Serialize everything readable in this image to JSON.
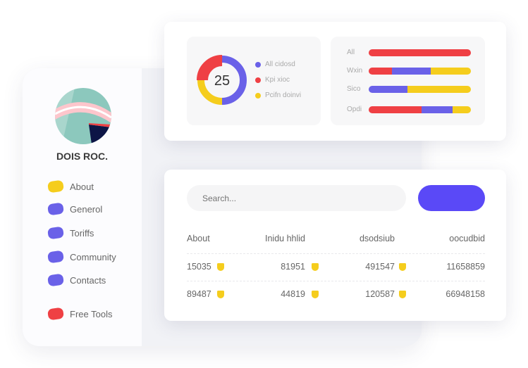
{
  "colors": {
    "red": "#ef4044",
    "blue": "#6a61e8",
    "yellow": "#f5cd1d",
    "accent": "#5a49f7"
  },
  "sidebar": {
    "brand": "DOIS ROC.",
    "items": [
      {
        "label": "About",
        "color": "#f5cd1d"
      },
      {
        "label": "Generol",
        "color": "#6a61e8"
      },
      {
        "label": "Toriffs",
        "color": "#6a61e8"
      },
      {
        "label": "Community",
        "color": "#6a61e8"
      },
      {
        "label": "Contacts",
        "color": "#6a61e8"
      },
      {
        "label": "Free Tools",
        "color": "#ef4044"
      }
    ]
  },
  "donut": {
    "value": "25",
    "segments": [
      {
        "label": "All cidosd",
        "fraction": 0.5,
        "color": "#6a61e8"
      },
      {
        "label": "Kpi xioc",
        "fraction": 0.25,
        "color": "#ef4044"
      },
      {
        "label": "Pcifn doinvi",
        "fraction": 0.25,
        "color": "#f5cd1d"
      }
    ]
  },
  "bars": [
    {
      "label": "All",
      "segments": [
        {
          "fraction": 1,
          "color": "#ef4044"
        }
      ]
    },
    {
      "label": "Wxin",
      "segments": [
        {
          "fraction": 0.23,
          "color": "#ef4044"
        },
        {
          "fraction": 0.38,
          "color": "#6a61e8"
        },
        {
          "fraction": 0.39,
          "color": "#f5cd1d"
        }
      ]
    },
    {
      "label": "Sico",
      "segments": [
        {
          "fraction": 0.38,
          "color": "#6a61e8"
        },
        {
          "fraction": 0.62,
          "color": "#f5cd1d"
        }
      ]
    },
    {
      "label": "Opdi",
      "segments": [
        {
          "fraction": 0.52,
          "color": "#ef4044"
        },
        {
          "fraction": 0.3,
          "color": "#6a61e8"
        },
        {
          "fraction": 0.18,
          "color": "#f5cd1d"
        }
      ]
    }
  ],
  "search": {
    "placeholder": "Search..."
  },
  "table": {
    "headers": [
      "About",
      "Inidu hhlid",
      "dsodsiub",
      "oocudbid"
    ],
    "rows": [
      [
        "15035",
        "81951",
        "491547",
        "11658859"
      ],
      [
        "89487",
        "44819",
        "120587",
        "66948158"
      ]
    ]
  }
}
